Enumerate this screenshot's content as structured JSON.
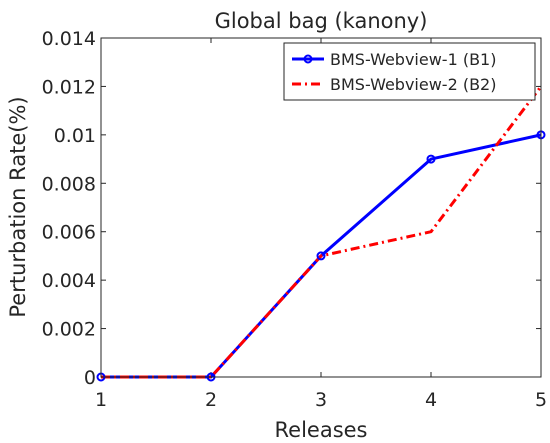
{
  "chart_data": {
    "type": "line",
    "title": "Global bag (kanony)",
    "xlabel": "Releases",
    "ylabel": "Perturbation Rate(%)",
    "x": [
      1,
      2,
      3,
      4,
      5
    ],
    "xticks": [
      "1",
      "2",
      "3",
      "4",
      "5"
    ],
    "xlim": [
      1,
      5
    ],
    "yticks": [
      {
        "value": 0,
        "label": "0"
      },
      {
        "value": 0.002,
        "label": "0.002"
      },
      {
        "value": 0.004,
        "label": "0.004"
      },
      {
        "value": 0.006,
        "label": "0.006"
      },
      {
        "value": 0.008,
        "label": "0.008"
      },
      {
        "value": 0.01,
        "label": "0.01"
      },
      {
        "value": 0.012,
        "label": "0.012"
      },
      {
        "value": 0.014,
        "label": "0.014"
      }
    ],
    "ylim": [
      0,
      0.014
    ],
    "grid": false,
    "legend_position": "top-right",
    "series": [
      {
        "name": "BMS-Webview-1 (B1)",
        "values": [
          0,
          0,
          0.005,
          0.009,
          0.01
        ],
        "color": "#0000ff",
        "style": "solid",
        "marker": "circle"
      },
      {
        "name": "BMS-Webview-2 (B2)",
        "values": [
          0,
          0,
          0.005,
          0.006,
          0.012
        ],
        "color": "#ff0000",
        "style": "dash-dot",
        "marker": "none"
      }
    ]
  }
}
